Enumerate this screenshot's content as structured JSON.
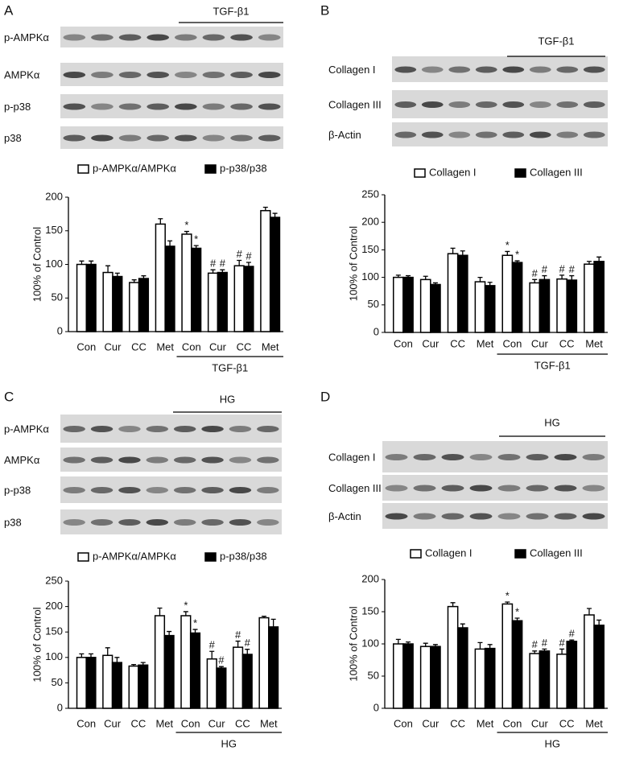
{
  "chart_data": [
    {
      "panel": "A",
      "type": "bar",
      "blot_rows": [
        "p-AMPKα",
        "AMPKα",
        "p-p38",
        "p38"
      ],
      "blot_group_label": "TGF-β1",
      "categories": [
        "Con",
        "Cur",
        "CC",
        "Met",
        "Con",
        "Cur",
        "CC",
        "Met"
      ],
      "group_label": "TGF-β1",
      "ylabel": "100% of Control",
      "ylim": [
        0,
        200
      ],
      "yticks": [
        0,
        50,
        100,
        150,
        200
      ],
      "series": [
        {
          "name": "p-AMPKα/AMPKα",
          "color": "#ffffff",
          "values": [
            100,
            88,
            73,
            160,
            145,
            87,
            98,
            180
          ],
          "errors": [
            5,
            10,
            4,
            8,
            4,
            5,
            8,
            5
          ],
          "annotations": [
            null,
            null,
            null,
            null,
            "*",
            "#",
            "#",
            null
          ]
        },
        {
          "name": "p-p38/p38",
          "color": "#000000",
          "values": [
            100,
            82,
            79,
            127,
            124,
            88,
            97,
            170
          ],
          "errors": [
            5,
            5,
            4,
            8,
            4,
            4,
            6,
            6
          ],
          "annotations": [
            null,
            null,
            null,
            null,
            "*",
            "#",
            "#",
            null
          ]
        }
      ]
    },
    {
      "panel": "B",
      "type": "bar",
      "blot_rows": [
        "Collagen I",
        "Collagen III",
        "β-Actin"
      ],
      "blot_group_label": "TGF-β1",
      "categories": [
        "Con",
        "Cur",
        "CC",
        "Met",
        "Con",
        "Cur",
        "CC",
        "Met"
      ],
      "group_label": "TGF-β1",
      "ylabel": "100% of Control",
      "ylim": [
        0,
        250
      ],
      "yticks": [
        0,
        50,
        100,
        150,
        200,
        250
      ],
      "series": [
        {
          "name": "Collagen I",
          "color": "#ffffff",
          "values": [
            100,
            96,
            143,
            92,
            140,
            90,
            97,
            124
          ],
          "errors": [
            4,
            6,
            10,
            8,
            7,
            6,
            7,
            5
          ],
          "annotations": [
            null,
            null,
            null,
            null,
            "*",
            "#",
            "#",
            null
          ]
        },
        {
          "name": "Collagen III",
          "color": "#000000",
          "values": [
            100,
            87,
            140,
            85,
            127,
            96,
            95,
            129
          ],
          "errors": [
            3,
            3,
            8,
            6,
            3,
            7,
            8,
            8
          ],
          "annotations": [
            null,
            null,
            null,
            null,
            "*",
            "#",
            "#",
            null
          ]
        }
      ]
    },
    {
      "panel": "C",
      "type": "bar",
      "blot_rows": [
        "p-AMPKα",
        "AMPKα",
        "p-p38",
        "p38"
      ],
      "blot_group_label": "HG",
      "categories": [
        "Con",
        "Cur",
        "CC",
        "Met",
        "Con",
        "Cur",
        "CC",
        "Met"
      ],
      "group_label": "HG",
      "ylabel": "100% of Control",
      "ylim": [
        0,
        250
      ],
      "yticks": [
        0,
        50,
        100,
        150,
        200,
        250
      ],
      "series": [
        {
          "name": "p-AMPKα/AMPKα",
          "color": "#ffffff",
          "values": [
            100,
            104,
            83,
            182,
            182,
            97,
            120,
            178
          ],
          "errors": [
            7,
            15,
            3,
            15,
            8,
            15,
            12,
            3
          ],
          "annotations": [
            null,
            null,
            null,
            null,
            "*",
            "#",
            "#",
            null
          ]
        },
        {
          "name": "p-p38/p38",
          "color": "#000000",
          "values": [
            100,
            90,
            85,
            143,
            148,
            79,
            106,
            160
          ],
          "errors": [
            7,
            10,
            5,
            8,
            7,
            3,
            10,
            15
          ],
          "annotations": [
            null,
            null,
            null,
            null,
            "*",
            "#",
            "#",
            null
          ]
        }
      ]
    },
    {
      "panel": "D",
      "type": "bar",
      "blot_rows": [
        "Collagen I",
        "Collagen III",
        "β-Actin"
      ],
      "blot_group_label": "HG",
      "categories": [
        "Con",
        "Cur",
        "CC",
        "Met",
        "Con",
        "Cur",
        "CC",
        "Met"
      ],
      "group_label": "HG",
      "ylabel": "100% of Control",
      "ylim": [
        0,
        200
      ],
      "yticks": [
        0,
        50,
        100,
        150,
        200
      ],
      "series": [
        {
          "name": "Collagen I",
          "color": "#ffffff",
          "values": [
            100,
            96,
            158,
            92,
            162,
            85,
            84,
            145
          ],
          "errors": [
            7,
            5,
            6,
            10,
            3,
            4,
            8,
            10
          ],
          "annotations": [
            null,
            null,
            null,
            null,
            "*",
            "#",
            "#",
            null
          ]
        },
        {
          "name": "Collagen III",
          "color": "#000000",
          "values": [
            100,
            96,
            125,
            93,
            136,
            89,
            104,
            129
          ],
          "errors": [
            3,
            3,
            6,
            6,
            4,
            3,
            2,
            8
          ],
          "annotations": [
            null,
            null,
            null,
            null,
            "*",
            "#",
            "#",
            null
          ]
        }
      ]
    }
  ]
}
